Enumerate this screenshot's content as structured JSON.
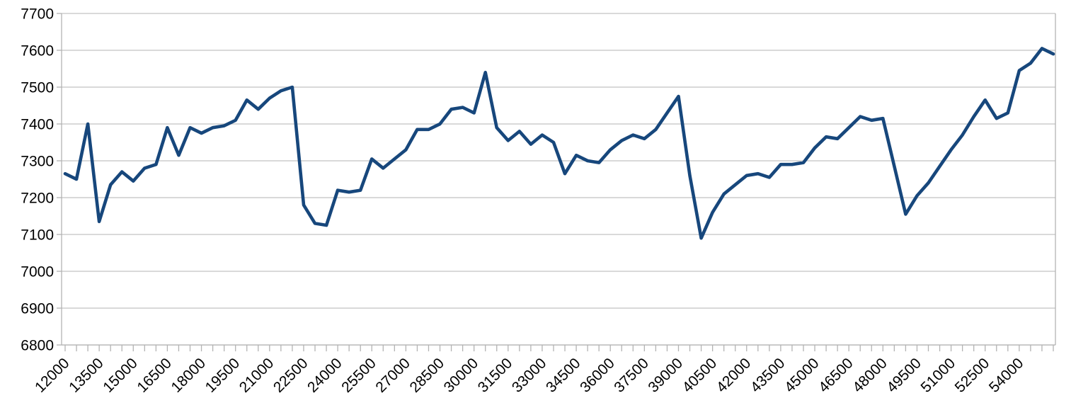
{
  "chart_data": {
    "type": "line",
    "title": "",
    "xlabel": "",
    "ylabel": "",
    "legend": "none",
    "grid": true,
    "x_start": 12000,
    "x_step": 500,
    "x_label_every": 3,
    "x": [
      12000,
      12500,
      13000,
      13500,
      14000,
      14500,
      15000,
      15500,
      16000,
      16500,
      17000,
      17500,
      18000,
      18500,
      19000,
      19500,
      20000,
      20500,
      21000,
      21500,
      22000,
      22500,
      23000,
      23500,
      24000,
      24500,
      25000,
      25500,
      26000,
      26500,
      27000,
      27500,
      28000,
      28500,
      29000,
      29500,
      30000,
      30500,
      31000,
      31500,
      32000,
      32500,
      33000,
      33500,
      34000,
      34500,
      35000,
      35500,
      36000,
      36500,
      37000,
      37500,
      38000,
      38500,
      39000,
      39500,
      40000,
      40500,
      41000,
      41500,
      42000,
      42500,
      43000,
      43500,
      44000,
      44500,
      45000,
      45500,
      46000,
      46500,
      47000,
      47500,
      48000,
      48500,
      49000,
      49500,
      50000,
      50500,
      51000,
      51500,
      52000,
      52500,
      53000,
      53500,
      54000,
      54500,
      55000,
      55500
    ],
    "values": [
      7265,
      7250,
      7400,
      7135,
      7235,
      7270,
      7245,
      7280,
      7290,
      7390,
      7315,
      7390,
      7375,
      7390,
      7395,
      7410,
      7465,
      7440,
      7470,
      7490,
      7500,
      7180,
      7130,
      7125,
      7220,
      7215,
      7220,
      7305,
      7280,
      7305,
      7330,
      7385,
      7385,
      7400,
      7440,
      7445,
      7430,
      7540,
      7390,
      7355,
      7380,
      7345,
      7370,
      7350,
      7265,
      7315,
      7300,
      7295,
      7330,
      7355,
      7370,
      7360,
      7385,
      7430,
      7475,
      7260,
      7090,
      7160,
      7210,
      7235,
      7260,
      7265,
      7255,
      7290,
      7290,
      7295,
      7335,
      7365,
      7360,
      7390,
      7420,
      7410,
      7415,
      7285,
      7155,
      7205,
      7240,
      7285,
      7330,
      7370,
      7420,
      7465,
      7415,
      7430,
      7545,
      7565,
      7605,
      7590
    ],
    "x_tick_labels": [
      "12000",
      "13500",
      "15000",
      "16500",
      "18000",
      "19500",
      "21000",
      "22500",
      "24000",
      "25500",
      "27000",
      "28500",
      "30000",
      "31500",
      "33000",
      "34500",
      "36000",
      "37500",
      "39000",
      "40500",
      "42000",
      "43500",
      "45000",
      "46500",
      "48000",
      "49500",
      "51000",
      "52500",
      "54000"
    ],
    "y_ticks": [
      6800,
      6900,
      7000,
      7100,
      7200,
      7300,
      7400,
      7500,
      7600,
      7700
    ],
    "y_tick_labels": [
      "6800",
      "6900",
      "7000",
      "7100",
      "7200",
      "7300",
      "7400",
      "7500",
      "7600",
      "7700"
    ],
    "ylim": [
      6800,
      7700
    ],
    "series_color": "#17477C",
    "grid_color": "#C2C2C2",
    "axis_color": "#B3B3B3",
    "text_color": "#000000",
    "background_color": "#FFFFFF"
  }
}
